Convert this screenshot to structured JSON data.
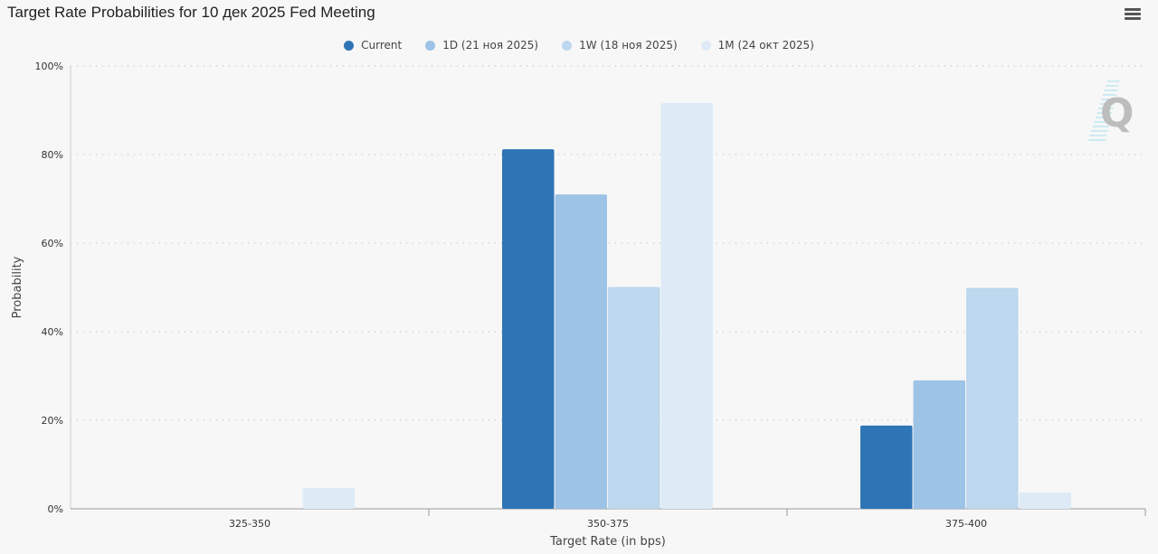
{
  "chart_data": {
    "type": "bar",
    "title": "Target Rate Probabilities for 10 дек 2025 Fed Meeting",
    "xlabel": "Target Rate (in bps)",
    "ylabel": "Probability",
    "ylim": [
      0,
      100
    ],
    "yticks": [
      "0%",
      "20%",
      "40%",
      "60%",
      "80%",
      "100%"
    ],
    "categories": [
      "325-350",
      "350-375",
      "375-400"
    ],
    "legend_position": "top-center",
    "grid": true,
    "series": [
      {
        "name": "Current",
        "color": "#2e75b6",
        "values": [
          0,
          81.2,
          18.8
        ]
      },
      {
        "name": "1D (21 ноя 2025)",
        "color": "#9dc3e6",
        "values": [
          0,
          71.0,
          29.0
        ]
      },
      {
        "name": "1W (18 ноя 2025)",
        "color": "#bdd7ee",
        "values": [
          0,
          50.1,
          49.9
        ]
      },
      {
        "name": "1M (24 окт 2025)",
        "color": "#deebf7",
        "values": [
          4.7,
          91.6,
          3.7
        ]
      }
    ]
  }
}
